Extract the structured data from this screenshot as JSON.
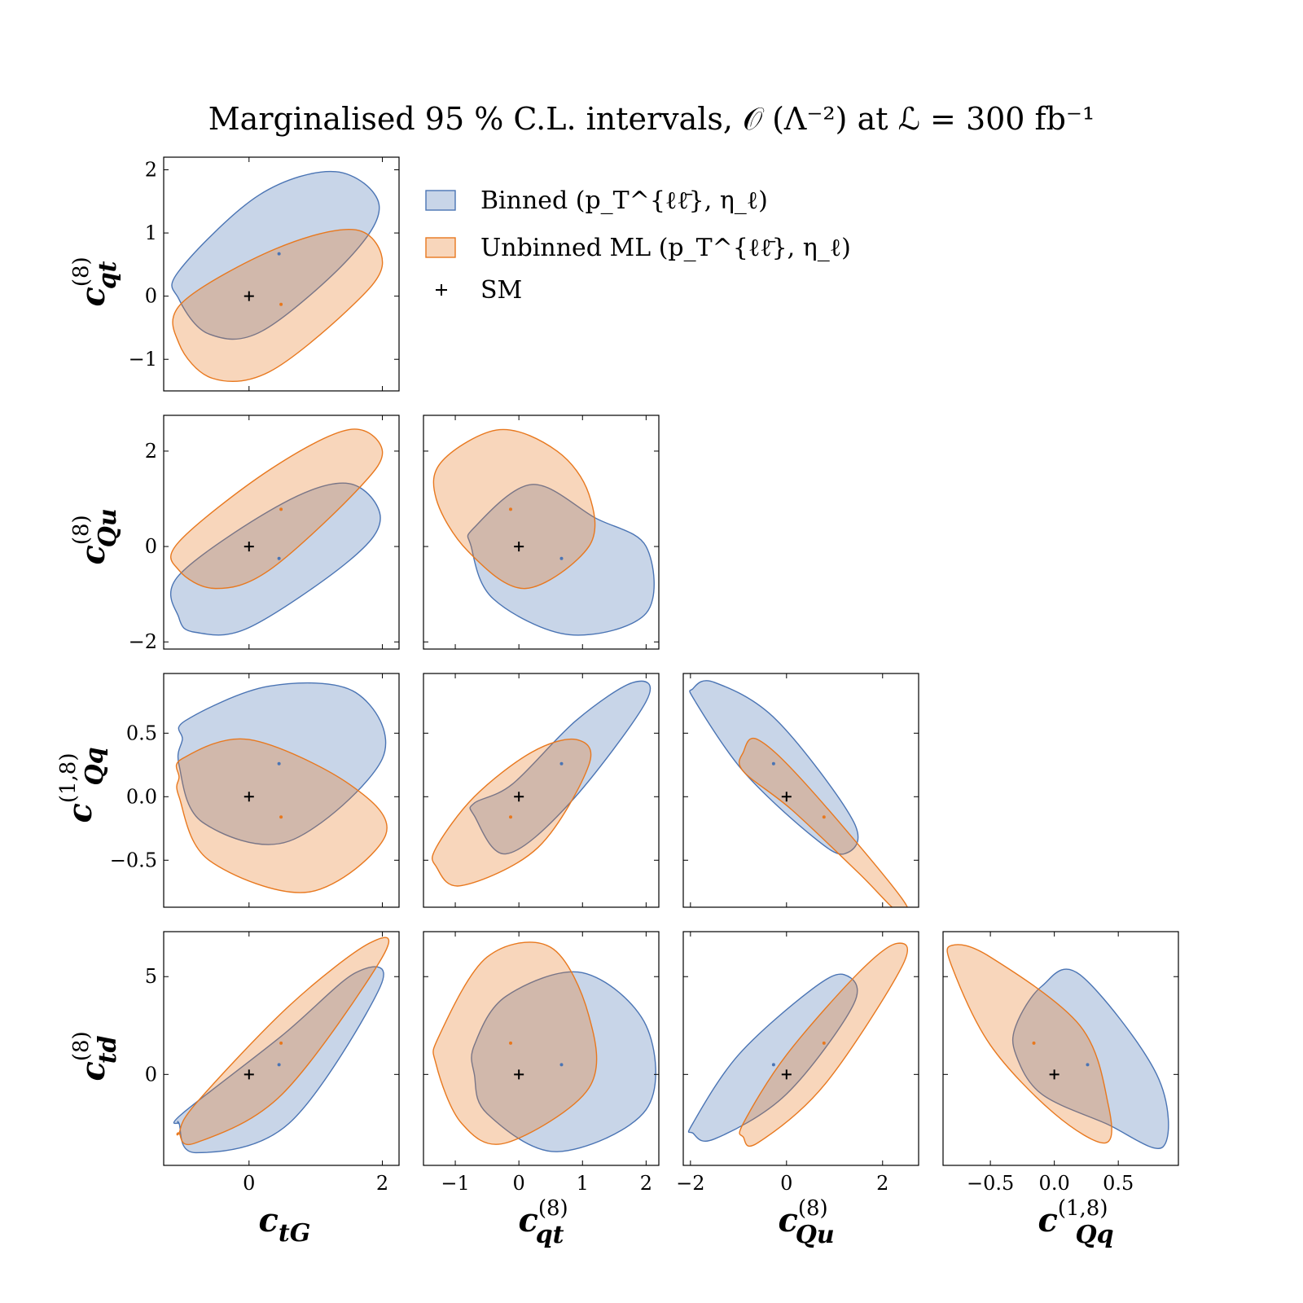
{
  "title": "Marginalised 95 % C.L. intervals,  𝒪 (Λ⁻²) at ℒ = 300 fb⁻¹",
  "colors": {
    "binned": "#4a74b4",
    "unbinned": "#e8781e",
    "sm": "#000000"
  },
  "legend": {
    "placement": "upper-right of corner plot",
    "items": [
      {
        "key": "binned",
        "label": "Binned (p_T^{ℓℓ̄}, η_ℓ)"
      },
      {
        "key": "unbinned",
        "label": "Unbinned ML (p_T^{ℓℓ̄}, η_ℓ)"
      },
      {
        "key": "sm",
        "label": "SM"
      }
    ]
  },
  "chart_data": {
    "type": "corner-ellipse",
    "variables": [
      "c_tG",
      "c_qt^(8)",
      "c_Qu^(8)",
      "c_Qq^(1,8)",
      "c_td^(8)"
    ],
    "axis_labels": {
      "c_tG": {
        "base": "c",
        "sub": "tG",
        "sup": ""
      },
      "c_qt^(8)": {
        "base": "c",
        "sub": "qt",
        "sup": "(8)"
      },
      "c_Qu^(8)": {
        "base": "c",
        "sub": "Qu",
        "sup": "(8)"
      },
      "c_Qq^(1,8)": {
        "base": "c",
        "sub": "Qq",
        "sup": "(1,8)"
      },
      "c_td^(8)": {
        "base": "c",
        "sub": "td",
        "sup": "(8)"
      }
    },
    "ranges": {
      "c_tG": [
        -1.28,
        2.25
      ],
      "c_qt^(8)": [
        -1.5,
        2.2
      ],
      "c_Qu^(8)": [
        -2.15,
        2.75
      ],
      "c_Qq^(1,8)": [
        -0.87,
        0.97
      ],
      "c_td^(8)": [
        -4.65,
        7.3
      ]
    },
    "ticks": {
      "c_tG": [
        0,
        2
      ],
      "c_qt^(8)": [
        -1,
        0,
        1,
        2
      ],
      "c_Qu^(8)": [
        -2,
        0,
        2
      ],
      "c_Qq^(1,8)": [
        -0.5,
        0.0,
        0.5
      ],
      "c_td^(8)": [
        0,
        5
      ]
    },
    "tick_labels": {
      "c_tG": [
        "0",
        "2"
      ],
      "c_qt^(8)": [
        "−1",
        "0",
        "1",
        "2"
      ],
      "c_Qu^(8)": [
        "−2",
        "0",
        "2"
      ],
      "c_Qq^(1,8)": [
        "−0.5",
        "0.0",
        "0.5"
      ],
      "c_td^(8)": [
        "0",
        "5"
      ]
    },
    "sm_point": [
      0,
      0,
      0,
      0,
      0
    ],
    "panels": [
      {
        "x": "c_tG",
        "y": "c_qt^(8)",
        "binned": {
          "center": [
            0.45,
            0.67
          ],
          "ellipse": [
            [
              -1.05,
              -0.05
            ],
            [
              -0.6,
              -0.6
            ],
            [
              0.2,
              -0.55
            ],
            [
              1.5,
              0.6
            ],
            [
              1.95,
              1.45
            ],
            [
              1.3,
              1.97
            ],
            [
              0.15,
              1.6
            ],
            [
              -1.05,
              0.4
            ]
          ]
        },
        "unbinned": {
          "center": [
            0.48,
            -0.13
          ],
          "ellipse": [
            [
              -1.05,
              -0.75
            ],
            [
              -0.55,
              -1.3
            ],
            [
              0.3,
              -1.2
            ],
            [
              1.5,
              -0.2
            ],
            [
              2.0,
              0.5
            ],
            [
              1.6,
              1.05
            ],
            [
              0.4,
              0.75
            ],
            [
              -1.0,
              -0.1
            ]
          ]
        }
      },
      {
        "x": "c_tG",
        "y": "c_Qu^(8)",
        "binned": {
          "center": [
            0.45,
            -0.25
          ],
          "ellipse": [
            [
              -1.05,
              -1.5
            ],
            [
              -0.8,
              -1.8
            ],
            [
              0.0,
              -1.7
            ],
            [
              1.5,
              -0.3
            ],
            [
              1.97,
              0.6
            ],
            [
              1.5,
              1.32
            ],
            [
              0.5,
              0.9
            ],
            [
              -1.05,
              -0.6
            ]
          ]
        },
        "unbinned": {
          "center": [
            0.48,
            0.78
          ],
          "ellipse": [
            [
              -1.05,
              -0.5
            ],
            [
              -0.5,
              -0.88
            ],
            [
              0.3,
              -0.5
            ],
            [
              1.6,
              1.15
            ],
            [
              2.0,
              2.0
            ],
            [
              1.5,
              2.45
            ],
            [
              0.3,
              1.6
            ],
            [
              -1.05,
              0.1
            ]
          ]
        }
      },
      {
        "x": "c_qt^(8)",
        "y": "c_Qu^(8)",
        "binned": {
          "center": [
            0.67,
            -0.25
          ],
          "ellipse": [
            [
              -0.75,
              0.0
            ],
            [
              -0.4,
              -1.1
            ],
            [
              0.8,
              -1.85
            ],
            [
              2.0,
              -1.4
            ],
            [
              2.0,
              0.0
            ],
            [
              1.2,
              0.6
            ],
            [
              0.2,
              1.3
            ],
            [
              -0.7,
              0.4
            ]
          ]
        },
        "unbinned": {
          "center": [
            -0.13,
            0.78
          ],
          "ellipse": [
            [
              -1.3,
              1.0
            ],
            [
              -0.8,
              -0.1
            ],
            [
              0.1,
              -0.88
            ],
            [
              1.1,
              0.0
            ],
            [
              1.1,
              1.1
            ],
            [
              0.6,
              2.0
            ],
            [
              -0.3,
              2.45
            ],
            [
              -1.2,
              1.8
            ]
          ]
        }
      },
      {
        "x": "c_tG",
        "y": "c_Qq^(1,8)",
        "binned": {
          "center": [
            0.45,
            0.26
          ],
          "ellipse": [
            [
              -1.05,
              0.25
            ],
            [
              -0.7,
              -0.2
            ],
            [
              0.6,
              -0.35
            ],
            [
              2.0,
              0.3
            ],
            [
              1.6,
              0.82
            ],
            [
              0.3,
              0.87
            ],
            [
              -0.95,
              0.6
            ],
            [
              -1.0,
              0.45
            ]
          ]
        },
        "unbinned": {
          "center": [
            0.48,
            -0.16
          ],
          "ellipse": [
            [
              -1.05,
              0.0
            ],
            [
              -0.6,
              -0.5
            ],
            [
              0.9,
              -0.75
            ],
            [
              2.05,
              -0.3
            ],
            [
              1.5,
              0.1
            ],
            [
              0.0,
              0.45
            ],
            [
              -1.0,
              0.3
            ],
            [
              -1.05,
              0.15
            ]
          ]
        }
      },
      {
        "x": "c_qt^(8)",
        "y": "c_Qq^(1,8)",
        "binned": {
          "center": [
            0.67,
            0.26
          ],
          "ellipse": [
            [
              -0.7,
              -0.15
            ],
            [
              -0.2,
              -0.45
            ],
            [
              0.8,
              -0.05
            ],
            [
              2.0,
              0.75
            ],
            [
              1.8,
              0.9
            ],
            [
              0.9,
              0.6
            ],
            [
              -0.1,
              0.1
            ],
            [
              -0.7,
              -0.05
            ]
          ]
        },
        "unbinned": {
          "center": [
            -0.13,
            -0.16
          ],
          "ellipse": [
            [
              -1.3,
              -0.55
            ],
            [
              -0.9,
              -0.7
            ],
            [
              0.3,
              -0.4
            ],
            [
              1.1,
              0.25
            ],
            [
              0.9,
              0.45
            ],
            [
              0.2,
              0.35
            ],
            [
              -0.7,
              0.0
            ],
            [
              -1.3,
              -0.4
            ]
          ]
        }
      },
      {
        "x": "c_Qu^(8)",
        "y": "c_Qq^(1,8)",
        "binned": {
          "center": [
            -0.27,
            0.26
          ],
          "ellipse": [
            [
              -1.95,
              0.85
            ],
            [
              -1.5,
              0.9
            ],
            [
              -0.2,
              0.6
            ],
            [
              1.4,
              -0.2
            ],
            [
              1.2,
              -0.45
            ],
            [
              0.5,
              -0.3
            ],
            [
              -0.9,
              0.2
            ],
            [
              -1.9,
              0.75
            ]
          ]
        },
        "unbinned": {
          "center": [
            0.78,
            -0.16
          ],
          "ellipse": [
            [
              -0.9,
              0.35
            ],
            [
              -0.6,
              0.45
            ],
            [
              0.4,
              0.1
            ],
            [
              2.4,
              -0.8
            ],
            [
              2.3,
              -0.9
            ],
            [
              1.5,
              -0.6
            ],
            [
              0.1,
              -0.1
            ],
            [
              -0.9,
              0.2
            ]
          ]
        }
      },
      {
        "x": "c_tG",
        "y": "c_td^(8)",
        "binned": {
          "center": [
            0.45,
            0.5
          ],
          "ellipse": [
            [
              -1.05,
              -2.5
            ],
            [
              -0.8,
              -4.0
            ],
            [
              0.6,
              -2.5
            ],
            [
              1.97,
              4.5
            ],
            [
              1.6,
              5.2
            ],
            [
              0.5,
              2.0
            ],
            [
              -1.0,
              -2.0
            ],
            [
              -1.05,
              -2.5
            ]
          ]
        },
        "unbinned": {
          "center": [
            0.48,
            1.6
          ],
          "ellipse": [
            [
              -1.05,
              -3.0
            ],
            [
              -0.8,
              -3.5
            ],
            [
              0.5,
              -1.0
            ],
            [
              2.0,
              6.0
            ],
            [
              1.8,
              6.7
            ],
            [
              0.6,
              3.5
            ],
            [
              -0.8,
              -1.5
            ],
            [
              -1.05,
              -3.0
            ]
          ]
        }
      },
      {
        "x": "c_qt^(8)",
        "y": "c_td^(8)",
        "binned": {
          "center": [
            0.67,
            0.5
          ],
          "ellipse": [
            [
              -0.7,
              0.0
            ],
            [
              -0.5,
              -2.0
            ],
            [
              0.6,
              -3.95
            ],
            [
              2.0,
              -1.8
            ],
            [
              2.0,
              2.5
            ],
            [
              1.0,
              5.2
            ],
            [
              -0.2,
              4.0
            ],
            [
              -0.7,
              1.5
            ]
          ]
        },
        "unbinned": {
          "center": [
            -0.13,
            1.6
          ],
          "ellipse": [
            [
              -1.3,
              0.5
            ],
            [
              -0.9,
              -2.5
            ],
            [
              -0.2,
              -3.5
            ],
            [
              1.1,
              -0.7
            ],
            [
              1.1,
              3.0
            ],
            [
              0.5,
              6.5
            ],
            [
              -0.5,
              6.0
            ],
            [
              -1.25,
              2.0
            ]
          ]
        }
      },
      {
        "x": "c_Qu^(8)",
        "y": "c_td^(8)",
        "binned": {
          "center": [
            -0.27,
            0.5
          ],
          "ellipse": [
            [
              -1.95,
              -3.0
            ],
            [
              -1.5,
              -3.3
            ],
            [
              0.0,
              -1.0
            ],
            [
              1.4,
              3.6
            ],
            [
              1.2,
              5.1
            ],
            [
              0.5,
              4.3
            ],
            [
              -1.0,
              1.0
            ],
            [
              -1.95,
              -2.5
            ]
          ]
        },
        "unbinned": {
          "center": [
            0.78,
            1.6
          ],
          "ellipse": [
            [
              -0.9,
              -3.2
            ],
            [
              -0.6,
              -3.5
            ],
            [
              0.8,
              -0.5
            ],
            [
              2.4,
              5.5
            ],
            [
              2.3,
              6.7
            ],
            [
              1.5,
              5.2
            ],
            [
              0.0,
              1.0
            ],
            [
              -0.9,
              -2.5
            ]
          ]
        }
      },
      {
        "x": "c_Qq^(1,8)",
        "y": "c_td^(8)",
        "binned": {
          "center": [
            0.26,
            0.5
          ],
          "ellipse": [
            [
              -0.3,
              2.5
            ],
            [
              -0.1,
              4.5
            ],
            [
              0.2,
              5.1
            ],
            [
              0.8,
              0.0
            ],
            [
              0.85,
              -3.7
            ],
            [
              0.4,
              -2.5
            ],
            [
              -0.1,
              -1.0
            ],
            [
              -0.3,
              1.0
            ]
          ]
        },
        "unbinned": {
          "center": [
            -0.16,
            1.6
          ],
          "ellipse": [
            [
              -0.8,
              6.6
            ],
            [
              -0.5,
              6.0
            ],
            [
              0.2,
              2.5
            ],
            [
              0.42,
              -1.5
            ],
            [
              0.4,
              -3.5
            ],
            [
              0.0,
              -2.0
            ],
            [
              -0.5,
              1.5
            ],
            [
              -0.8,
              5.5
            ]
          ]
        }
      }
    ]
  }
}
